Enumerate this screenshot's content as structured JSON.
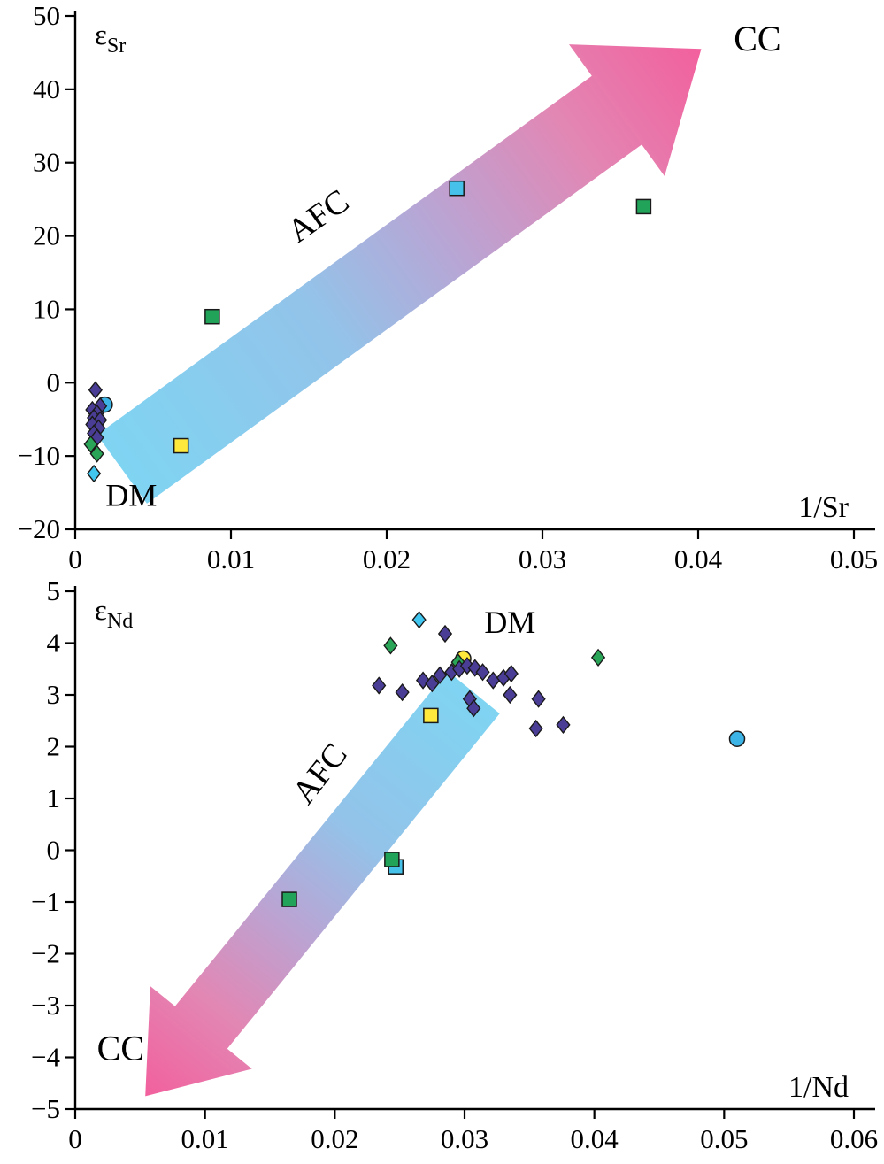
{
  "palette": {
    "purple_diamond": "#4a3d96",
    "green_diamond": "#2aa457",
    "cyan_diamond": "#41c6f0",
    "blue_circle": "#3db4e6",
    "yellow_square": "#ffe93d",
    "yellow_circle": "#ffe93d",
    "green_square": "#21a35a",
    "cyan_square": "#45c1ea",
    "marker_outline": "#1a1a1a",
    "axis": "#000000",
    "cc_label": "#e8131b",
    "dm_label": "#1a5fb4",
    "afc_label": "#000000",
    "arrow_gradient": [
      "#7fd4f2",
      "#93c3e9",
      "#b7a6d5",
      "#e287b4",
      "#f2609d"
    ]
  },
  "chart_data": [
    {
      "id": "sr",
      "type": "scatter",
      "title": "epsilon-Sr versus 1/Sr AFC mixing diagram",
      "ylabel": {
        "main": "ε",
        "sub": "Sr"
      },
      "xlabel": "1/Sr",
      "xlim": [
        0,
        0.05
      ],
      "ylim": [
        -20,
        50
      ],
      "grid": false,
      "xtick_vals": [
        0,
        0.01,
        0.02,
        0.03,
        0.04,
        0.05
      ],
      "xtick_labels": [
        "0",
        "0.01",
        "0.02",
        "0.03",
        "0.04",
        "0.05"
      ],
      "ytick_vals": [
        50,
        40,
        30,
        20,
        10,
        0,
        -10,
        -20
      ],
      "ytick_labels": [
        "50",
        "40",
        "30",
        "20",
        "10",
        "0",
        "−10",
        "−20"
      ],
      "arrow": {
        "tail": [
          0.003,
          -11.8
        ],
        "head": [
          0.0402,
          45.5
        ],
        "direction": "DM to CC"
      },
      "labels": [
        {
          "text": "CC",
          "x": 0.0438,
          "y": 45.3,
          "size": 40,
          "rotate": 0,
          "color_key": "cc_label",
          "name": "cc-label"
        },
        {
          "text": "DM",
          "x": 0.0036,
          "y": -16.8,
          "size": 36,
          "rotate": 0,
          "color_key": "dm_label",
          "name": "dm-label"
        },
        {
          "text": "AFC",
          "x": 0.016,
          "y": 21.5,
          "size": 38,
          "rotate": -35,
          "color_key": "afc_label",
          "name": "afc-label"
        }
      ],
      "series": [
        {
          "name": "blue-circle",
          "marker": "circle",
          "color_key": "blue_circle",
          "points": [
            [
              0.0019,
              -3.0
            ]
          ]
        },
        {
          "name": "purple-diamond",
          "marker": "diamond",
          "color_key": "purple_diamond",
          "points": [
            [
              0.0013,
              -1.0
            ],
            [
              0.0016,
              -3.2
            ],
            [
              0.0011,
              -3.7
            ],
            [
              0.0014,
              -4.2
            ],
            [
              0.0012,
              -4.8
            ],
            [
              0.0016,
              -5.1
            ],
            [
              0.0011,
              -5.7
            ],
            [
              0.0015,
              -6.2
            ],
            [
              0.0012,
              -6.9
            ],
            [
              0.0014,
              -7.5
            ]
          ]
        },
        {
          "name": "green-diamond",
          "marker": "diamond",
          "color_key": "green_diamond",
          "points": [
            [
              0.001,
              -8.4
            ],
            [
              0.0014,
              -9.7
            ]
          ]
        },
        {
          "name": "cyan-diamond",
          "marker": "diamond",
          "color_key": "cyan_diamond",
          "points": [
            [
              0.0012,
              -12.4
            ]
          ]
        },
        {
          "name": "yellow-square",
          "marker": "square",
          "color_key": "yellow_square",
          "points": [
            [
              0.0068,
              -8.6
            ]
          ]
        },
        {
          "name": "green-square",
          "marker": "square",
          "color_key": "green_square",
          "points": [
            [
              0.0088,
              9.0
            ],
            [
              0.0365,
              24.0
            ]
          ]
        },
        {
          "name": "cyan-square",
          "marker": "square",
          "color_key": "cyan_square",
          "points": [
            [
              0.0245,
              26.5
            ]
          ]
        }
      ]
    },
    {
      "id": "nd",
      "type": "scatter",
      "title": "epsilon-Nd versus 1/Nd AFC mixing diagram",
      "ylabel": {
        "main": "ε",
        "sub": "Nd"
      },
      "xlabel": "1/Nd",
      "xlim": [
        0,
        0.06
      ],
      "ylim": [
        -5,
        5
      ],
      "grid": false,
      "xtick_vals": [
        0,
        0.01,
        0.02,
        0.03,
        0.04,
        0.05,
        0.06
      ],
      "xtick_labels": [
        "0",
        "0.01",
        "0.02",
        "0.03",
        "0.04",
        "0.05",
        "0.06"
      ],
      "ytick_vals": [
        5,
        4,
        3,
        2,
        1,
        0,
        -1,
        -2,
        -3,
        -4,
        -5
      ],
      "ytick_labels": [
        "5",
        "4",
        "3",
        "2",
        "1",
        "0",
        "−1",
        "−2",
        "−3",
        "−4",
        "−5"
      ],
      "arrow": {
        "tail": [
          0.0307,
          3.05
        ],
        "head": [
          0.0054,
          -4.75
        ],
        "direction": "DM to CC"
      },
      "labels": [
        {
          "text": "DM",
          "x": 0.0335,
          "y": 4.2,
          "size": 36,
          "rotate": 0,
          "color_key": "dm_label",
          "name": "dm-label"
        },
        {
          "text": "CC",
          "x": 0.0035,
          "y": -4.05,
          "size": 40,
          "rotate": 0,
          "color_key": "cc_label",
          "name": "cc-label"
        },
        {
          "text": "AFC",
          "x": 0.0195,
          "y": 1.35,
          "size": 38,
          "rotate": -52,
          "color_key": "afc_label",
          "name": "afc-label"
        }
      ],
      "series": [
        {
          "name": "cyan-square",
          "marker": "square",
          "color_key": "cyan_square",
          "points": [
            [
              0.0247,
              -0.32
            ]
          ]
        },
        {
          "name": "green-square",
          "marker": "square",
          "color_key": "green_square",
          "points": [
            [
              0.0244,
              -0.18
            ],
            [
              0.0165,
              -0.95
            ]
          ]
        },
        {
          "name": "yellow-square",
          "marker": "square",
          "color_key": "yellow_square",
          "points": [
            [
              0.0274,
              2.6
            ]
          ]
        },
        {
          "name": "blue-circle",
          "marker": "circle",
          "color_key": "blue_circle",
          "points": [
            [
              0.051,
              2.15
            ]
          ]
        },
        {
          "name": "yellow-circle",
          "marker": "circle",
          "color_key": "yellow_circle",
          "points": [
            [
              0.0299,
              3.7
            ]
          ]
        },
        {
          "name": "green-diamond",
          "marker": "diamond",
          "color_key": "green_diamond",
          "points": [
            [
              0.0243,
              3.95
            ],
            [
              0.0295,
              3.63
            ],
            [
              0.0403,
              3.72
            ]
          ]
        },
        {
          "name": "cyan-diamond",
          "marker": "diamond",
          "color_key": "cyan_diamond",
          "points": [
            [
              0.0265,
              4.45
            ]
          ]
        },
        {
          "name": "purple-diamond",
          "marker": "diamond",
          "color_key": "purple_diamond",
          "points": [
            [
              0.0234,
              3.18
            ],
            [
              0.0252,
              3.05
            ],
            [
              0.0268,
              3.28
            ],
            [
              0.0275,
              3.22
            ],
            [
              0.0281,
              3.38
            ],
            [
              0.0285,
              4.18
            ],
            [
              0.029,
              3.44
            ],
            [
              0.0296,
              3.5
            ],
            [
              0.0302,
              3.56
            ],
            [
              0.0308,
              3.52
            ],
            [
              0.0304,
              2.92
            ],
            [
              0.0307,
              2.74
            ],
            [
              0.0314,
              3.44
            ],
            [
              0.0322,
              3.28
            ],
            [
              0.033,
              3.33
            ],
            [
              0.0336,
              3.41
            ],
            [
              0.0335,
              3.0
            ],
            [
              0.0357,
              2.92
            ],
            [
              0.0355,
              2.35
            ],
            [
              0.0376,
              2.42
            ]
          ]
        }
      ]
    }
  ]
}
